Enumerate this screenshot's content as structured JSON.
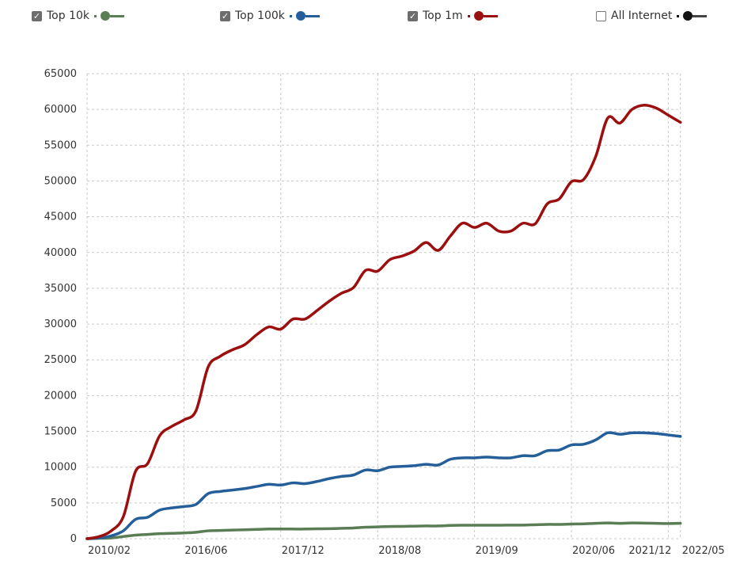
{
  "legend": [
    {
      "label": "Top 10k",
      "checked": true,
      "color": "#5a7d55"
    },
    {
      "label": "Top 100k",
      "checked": true,
      "color": "#255f99"
    },
    {
      "label": "Top 1m",
      "checked": true,
      "color": "#9b0f0f"
    },
    {
      "label": "All Internet",
      "checked": false,
      "color": "#111111"
    }
  ],
  "chart_data": {
    "type": "line",
    "title": "",
    "xlabel": "",
    "ylabel": "",
    "ylim": [
      0,
      65000
    ],
    "y_ticks": [
      "0",
      "5000",
      "10000",
      "15000",
      "20000",
      "25000",
      "30000",
      "35000",
      "40000",
      "45000",
      "50000",
      "55000",
      "60000",
      "65000"
    ],
    "x_ticks": [
      {
        "index": 0,
        "label": "2010/02"
      },
      {
        "index": 8,
        "label": "2016/06"
      },
      {
        "index": 16,
        "label": "2017/12"
      },
      {
        "index": 24,
        "label": "2018/08"
      },
      {
        "index": 32,
        "label": "2019/09"
      },
      {
        "index": 40,
        "label": "2020/06"
      },
      {
        "index": 48,
        "label": "2021/12"
      },
      {
        "index": 49,
        "label": "2022/05"
      }
    ],
    "grid": true,
    "legend_position": "top",
    "series": [
      {
        "name": "Top 10k",
        "color": "#5a7d55",
        "values": [
          0,
          50,
          100,
          300,
          500,
          600,
          700,
          750,
          800,
          900,
          1100,
          1150,
          1200,
          1250,
          1300,
          1350,
          1350,
          1350,
          1350,
          1380,
          1400,
          1450,
          1500,
          1600,
          1650,
          1700,
          1720,
          1750,
          1780,
          1780,
          1850,
          1880,
          1880,
          1880,
          1880,
          1900,
          1900,
          1950,
          2000,
          2000,
          2050,
          2080,
          2150,
          2200,
          2150,
          2200,
          2180,
          2150,
          2120,
          2150
        ]
      },
      {
        "name": "Top 100k",
        "color": "#255f99",
        "values": [
          0,
          100,
          400,
          1100,
          2700,
          3000,
          4000,
          4300,
          4500,
          4800,
          6300,
          6600,
          6800,
          7000,
          7300,
          7600,
          7500,
          7800,
          7700,
          8000,
          8400,
          8700,
          8900,
          9600,
          9500,
          10000,
          10100,
          10200,
          10400,
          10300,
          11100,
          11300,
          11300,
          11400,
          11300,
          11300,
          11600,
          11600,
          12300,
          12400,
          13100,
          13200,
          13800,
          14800,
          14600,
          14800,
          14800,
          14700,
          14500,
          14300
        ]
      },
      {
        "name": "Top 1m",
        "color": "#9b0f0f",
        "values": [
          0,
          300,
          1100,
          3100,
          9400,
          10500,
          14400,
          15700,
          16600,
          17900,
          24000,
          25500,
          26400,
          27100,
          28500,
          29600,
          29300,
          30700,
          30700,
          31900,
          33200,
          34300,
          35100,
          37500,
          37400,
          39000,
          39500,
          40200,
          41400,
          40300,
          42300,
          44100,
          43500,
          44100,
          43000,
          43000,
          44100,
          44000,
          46800,
          47500,
          49900,
          50200,
          53400,
          58800,
          58100,
          60000,
          60600,
          60200,
          59200,
          58200
        ]
      }
    ]
  }
}
